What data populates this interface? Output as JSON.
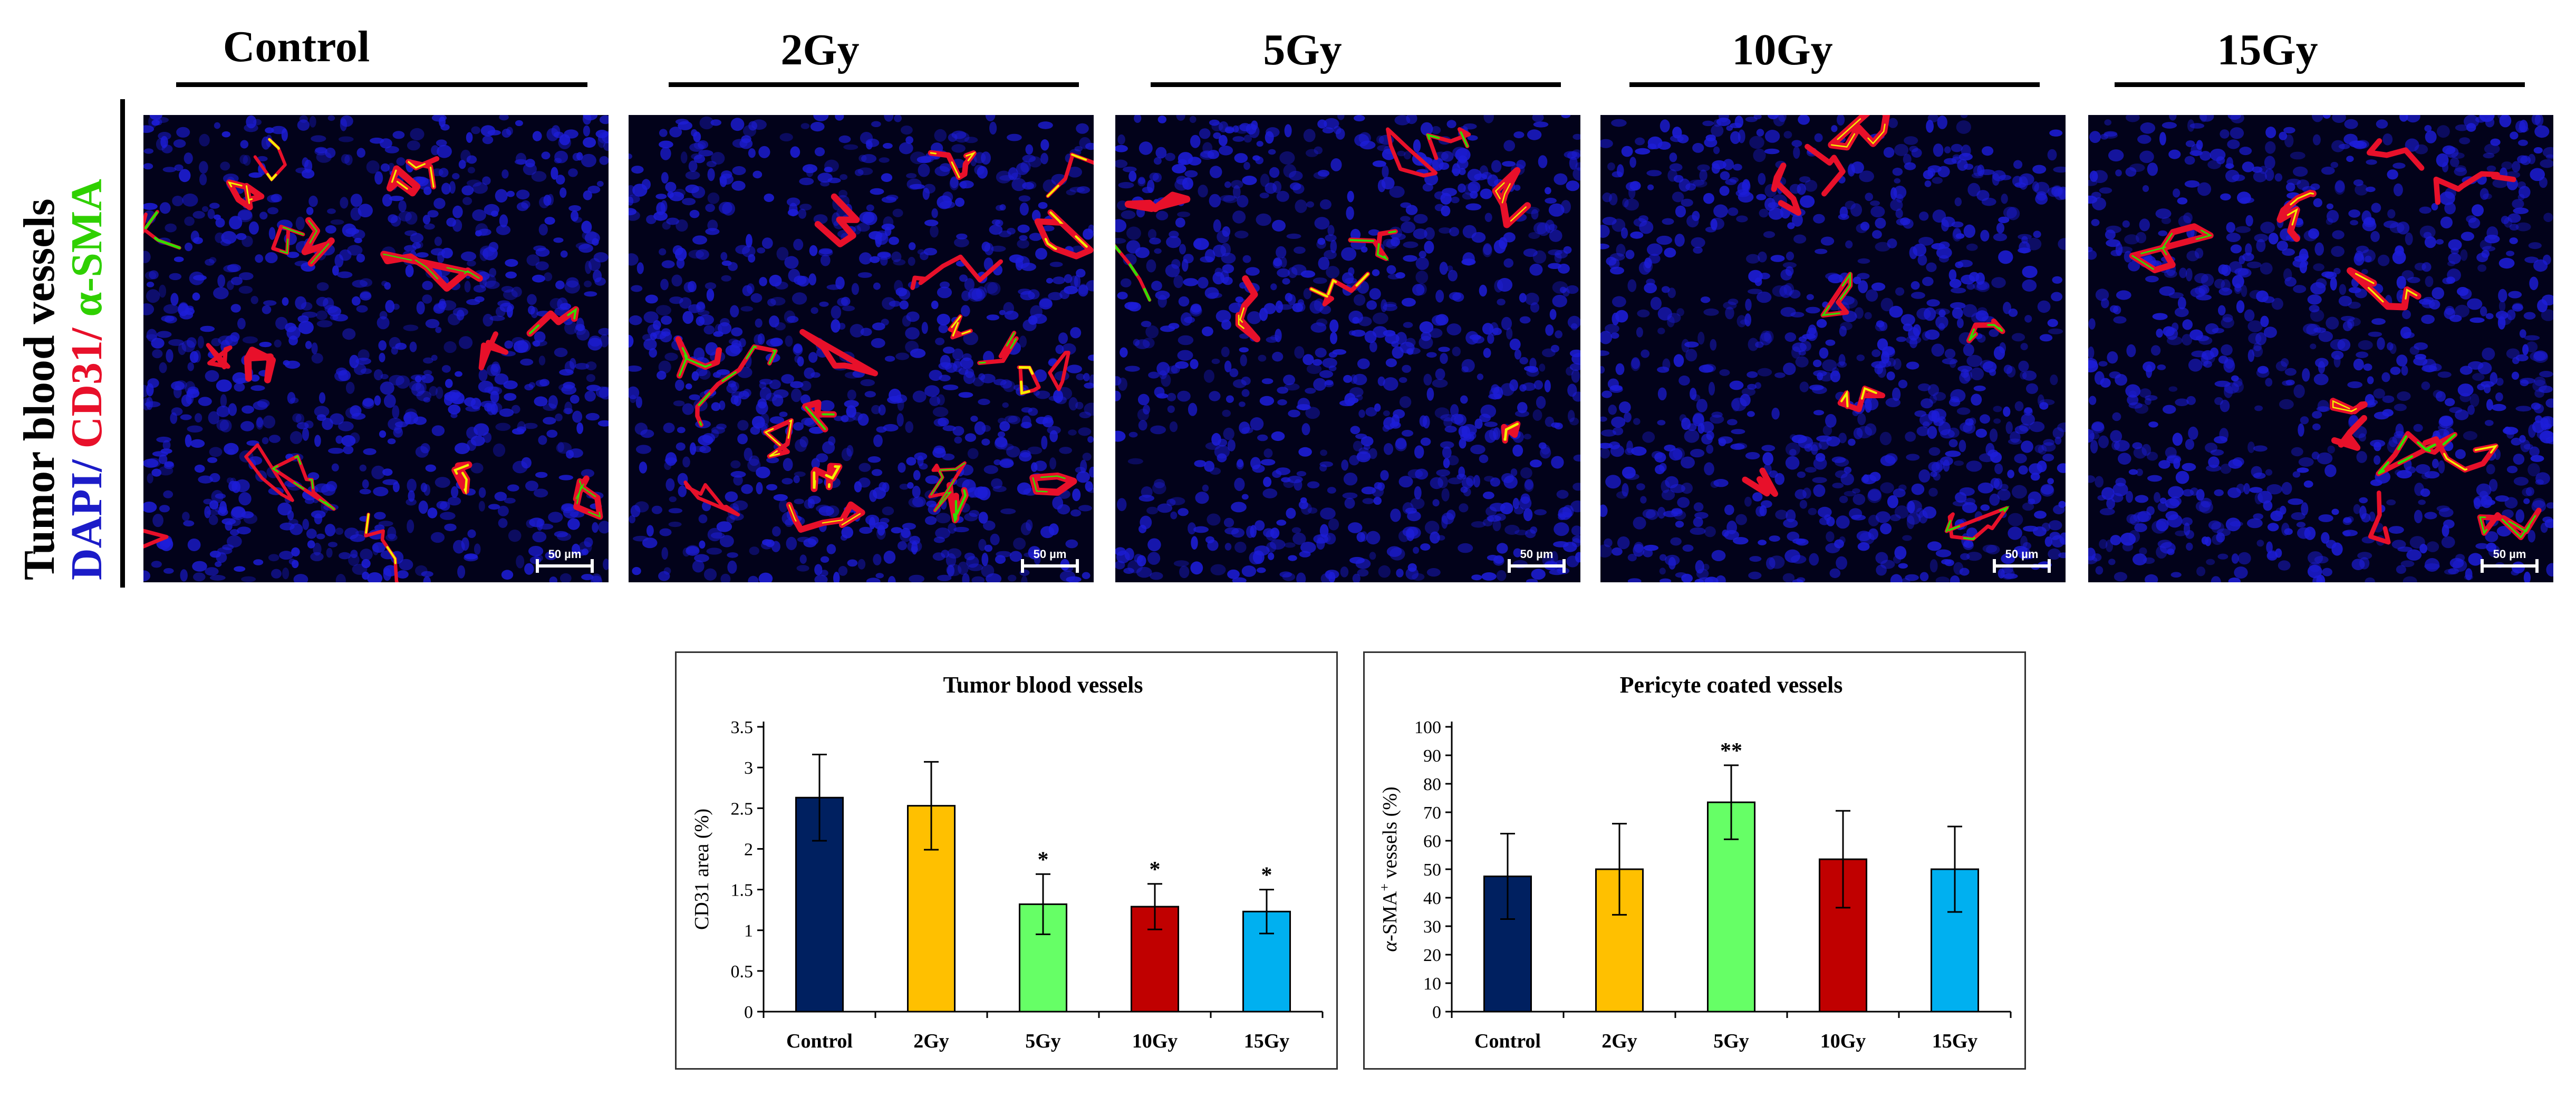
{
  "figure": {
    "column_titles": [
      "Control",
      "2Gy",
      "5Gy",
      "10Gy",
      "15Gy"
    ],
    "row_label": {
      "part1": "Tumor blood vessels",
      "part2": "DAPI/",
      "part3": " CD31/ ",
      "part4": "α-SMA"
    },
    "scale_bar_label": "50 µm",
    "stain_colors": {
      "dapi": "#1d1dd8",
      "cd31": "#e8102a",
      "sma": "#2fe000",
      "overlap": "#f3f000"
    }
  },
  "chart_data": [
    {
      "type": "bar",
      "title": "Tumor blood vessels",
      "xlabel": "",
      "ylabel": "CD31 area (%)",
      "categories": [
        "Control",
        "2Gy",
        "5Gy",
        "10Gy",
        "15Gy"
      ],
      "values": [
        2.63,
        2.53,
        1.32,
        1.29,
        1.23
      ],
      "errors": [
        0.53,
        0.54,
        0.37,
        0.28,
        0.27
      ],
      "annotations": [
        "",
        "",
        "*",
        "*",
        "*"
      ],
      "colors": [
        "#002060",
        "#ffc000",
        "#66ff66",
        "#c00000",
        "#00b0f0"
      ],
      "ylim": [
        0,
        3.5
      ],
      "yticks": [
        0,
        0.5,
        1,
        1.5,
        2,
        2.5,
        3,
        3.5
      ],
      "ytick_labels": [
        "0",
        "0.5",
        "1",
        "1.5",
        "2",
        "2.5",
        "3",
        "3.5"
      ],
      "grid": false
    },
    {
      "type": "bar",
      "title": "Pericyte coated vessels",
      "xlabel": "",
      "ylabel_italic": "α",
      "ylabel_main": "-SMA",
      "ylabel_sup": "+",
      "ylabel_tail": " vessels (%)",
      "categories": [
        "Control",
        "2Gy",
        "5Gy",
        "10Gy",
        "15Gy"
      ],
      "values": [
        47.5,
        50,
        73.5,
        53.5,
        50
      ],
      "errors": [
        15,
        16,
        13,
        17,
        15
      ],
      "annotations": [
        "",
        "",
        "**",
        "",
        ""
      ],
      "colors": [
        "#002060",
        "#ffc000",
        "#66ff66",
        "#c00000",
        "#00b0f0"
      ],
      "ylim": [
        0,
        100
      ],
      "yticks": [
        0,
        10,
        20,
        30,
        40,
        50,
        60,
        70,
        80,
        90,
        100
      ],
      "ytick_labels": [
        "0",
        "10",
        "20",
        "30",
        "40",
        "50",
        "60",
        "70",
        "80",
        "90",
        "100"
      ],
      "grid": false
    }
  ]
}
